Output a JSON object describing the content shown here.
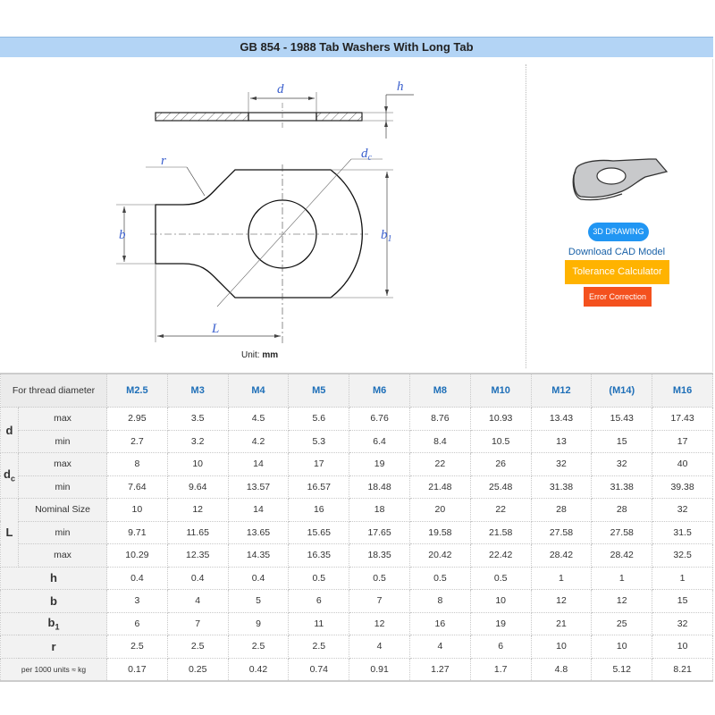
{
  "title": "GB 854 - 1988 Tab Washers With Long Tab",
  "drawing": {
    "labels": {
      "d": "d",
      "h": "h",
      "r": "r",
      "dc": "d",
      "dc_sub": "c",
      "b": "b",
      "b1": "b",
      "b1_sub": "1",
      "L": "L"
    },
    "unit_label": "Unit:",
    "unit_value": "mm"
  },
  "side_panel": {
    "drawing_button": "3D DRAWING",
    "download_link": "Download CAD Model",
    "tolerance_button": "Tolerance Calculator",
    "error_button": "Error Correction",
    "colors": {
      "drawing_button": "#2196f3",
      "tolerance_button": "#ffb300",
      "error_button": "#f4511e",
      "header_bar": "#b3d4f5"
    }
  },
  "table": {
    "corner_header": "For thread diameter",
    "columns": [
      "M2.5",
      "M3",
      "M4",
      "M5",
      "M6",
      "M8",
      "M10",
      "M12",
      "(M14)",
      "M16"
    ],
    "groups": [
      {
        "label": "d",
        "sub": "",
        "rows": [
          {
            "label": "max",
            "values": [
              "2.95",
              "3.5",
              "4.5",
              "5.6",
              "6.76",
              "8.76",
              "10.93",
              "13.43",
              "15.43",
              "17.43"
            ]
          },
          {
            "label": "min",
            "values": [
              "2.7",
              "3.2",
              "4.2",
              "5.3",
              "6.4",
              "8.4",
              "10.5",
              "13",
              "15",
              "17"
            ]
          }
        ]
      },
      {
        "label": "d",
        "sub": "c",
        "rows": [
          {
            "label": "max",
            "values": [
              "8",
              "10",
              "14",
              "17",
              "19",
              "22",
              "26",
              "32",
              "32",
              "40"
            ]
          },
          {
            "label": "min",
            "values": [
              "7.64",
              "9.64",
              "13.57",
              "16.57",
              "18.48",
              "21.48",
              "25.48",
              "31.38",
              "31.38",
              "39.38"
            ]
          }
        ]
      },
      {
        "label": "L",
        "sub": "",
        "rows": [
          {
            "label": "Nominal Size",
            "values": [
              "10",
              "12",
              "14",
              "16",
              "18",
              "20",
              "22",
              "28",
              "28",
              "32"
            ]
          },
          {
            "label": "min",
            "values": [
              "9.71",
              "11.65",
              "13.65",
              "15.65",
              "17.65",
              "19.58",
              "21.58",
              "27.58",
              "27.58",
              "31.5"
            ]
          },
          {
            "label": "max",
            "values": [
              "10.29",
              "12.35",
              "14.35",
              "16.35",
              "18.35",
              "20.42",
              "22.42",
              "28.42",
              "28.42",
              "32.5"
            ]
          }
        ]
      }
    ],
    "singles": [
      {
        "label": "h",
        "sub": "",
        "values": [
          "0.4",
          "0.4",
          "0.4",
          "0.5",
          "0.5",
          "0.5",
          "0.5",
          "1",
          "1",
          "1"
        ]
      },
      {
        "label": "b",
        "sub": "",
        "values": [
          "3",
          "4",
          "5",
          "6",
          "7",
          "8",
          "10",
          "12",
          "12",
          "15"
        ]
      },
      {
        "label": "b",
        "sub": "1",
        "values": [
          "6",
          "7",
          "9",
          "11",
          "12",
          "16",
          "19",
          "21",
          "25",
          "32"
        ]
      },
      {
        "label": "r",
        "sub": "",
        "values": [
          "2.5",
          "2.5",
          "2.5",
          "2.5",
          "4",
          "4",
          "6",
          "10",
          "10",
          "10"
        ]
      },
      {
        "label": "per 1000 units ≈ kg",
        "sub": "",
        "small": true,
        "values": [
          "0.17",
          "0.25",
          "0.42",
          "0.74",
          "0.91",
          "1.27",
          "1.7",
          "4.8",
          "5.12",
          "8.21"
        ]
      }
    ]
  }
}
